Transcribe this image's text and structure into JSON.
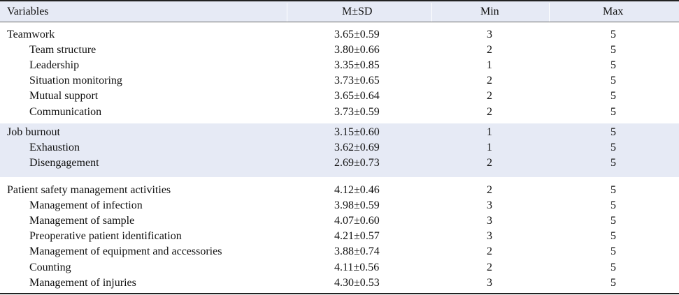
{
  "header": {
    "variables": "Variables",
    "msd": "M±SD",
    "min": "Min",
    "max": "Max"
  },
  "groups": [
    {
      "rows": [
        {
          "name": "Teamwork",
          "msd": "3.65±0.59",
          "min": "3",
          "max": "5"
        },
        {
          "name": "Team structure",
          "msd": "3.80±0.66",
          "min": "2",
          "max": "5"
        },
        {
          "name": "Leadership",
          "msd": "3.35±0.85",
          "min": "1",
          "max": "5"
        },
        {
          "name": "Situation monitoring",
          "msd": "3.73±0.65",
          "min": "2",
          "max": "5"
        },
        {
          "name": "Mutual support",
          "msd": "3.65±0.64",
          "min": "2",
          "max": "5"
        },
        {
          "name": "Communication",
          "msd": "3.73±0.59",
          "min": "2",
          "max": "5"
        }
      ]
    },
    {
      "rows": [
        {
          "name": "Job burnout",
          "msd": "3.15±0.60",
          "min": "1",
          "max": "5"
        },
        {
          "name": "Exhaustion",
          "msd": "3.62±0.69",
          "min": "1",
          "max": "5"
        },
        {
          "name": "Disengagement",
          "msd": "2.69±0.73",
          "min": "2",
          "max": "5"
        }
      ]
    },
    {
      "rows": [
        {
          "name": "Patient safety management activities",
          "msd": "4.12±0.46",
          "min": "2",
          "max": "5"
        },
        {
          "name": "Management of infection",
          "msd": "3.98±0.59",
          "min": "3",
          "max": "5"
        },
        {
          "name": "Management of sample",
          "msd": "4.07±0.60",
          "min": "3",
          "max": "5"
        },
        {
          "name": "Preoperative patient identification",
          "msd": "4.21±0.57",
          "min": "3",
          "max": "5"
        },
        {
          "name": "Management of equipment and accessories",
          "msd": "3.88±0.74",
          "min": "2",
          "max": "5"
        },
        {
          "name": "Counting",
          "msd": "4.11±0.56",
          "min": "2",
          "max": "5"
        },
        {
          "name": "Management of injuries",
          "msd": "4.30±0.53",
          "min": "3",
          "max": "5"
        }
      ]
    }
  ]
}
